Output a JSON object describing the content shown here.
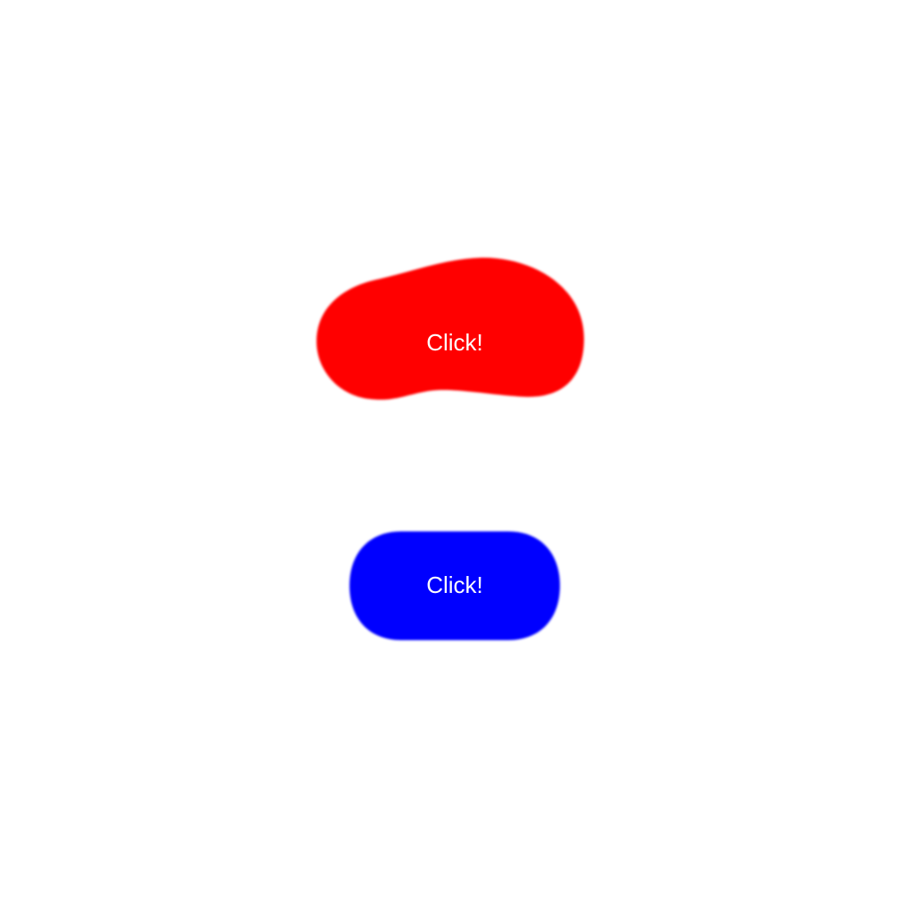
{
  "buttons": [
    {
      "label": "Click!",
      "color": "#ff0000"
    },
    {
      "label": "Click!",
      "color": "#0000ff"
    }
  ]
}
